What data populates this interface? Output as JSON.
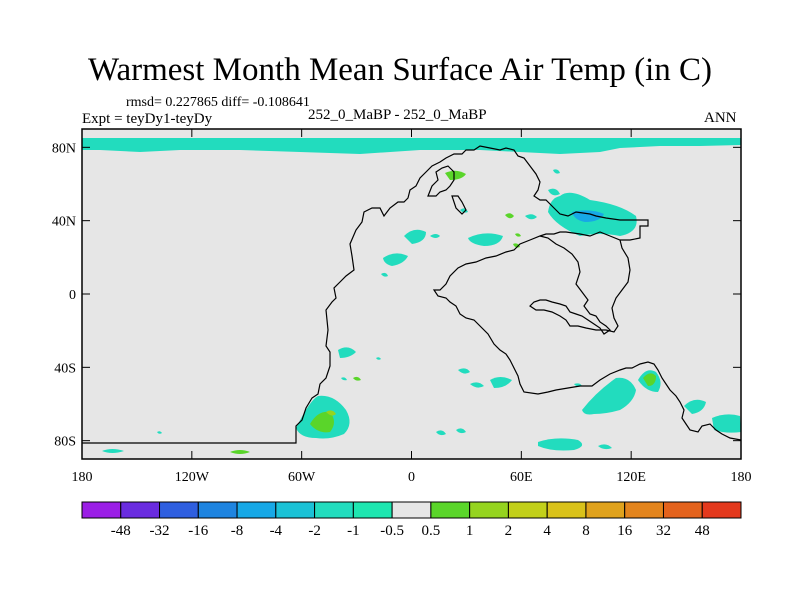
{
  "title": "Warmest Month Mean Surface Air Temp (in C)",
  "stats": "rmsd= 0.227865 diff= -0.108641",
  "experiment": "Expt = teyDy1-teyDy",
  "center_label": "252_0_MaBP - 252_0_MaBP",
  "season": "ANN",
  "map": {
    "background_color": "#e6e6e6",
    "coast_color": "#000000",
    "lat_range": [
      -90,
      90
    ],
    "lon_range": [
      -180,
      180
    ],
    "y_ticks": [
      {
        "lat": 80,
        "label": "80N"
      },
      {
        "lat": 40,
        "label": "40N"
      },
      {
        "lat": 0,
        "label": "0"
      },
      {
        "lat": -40,
        "label": "40S"
      },
      {
        "lat": -80,
        "label": "80S"
      }
    ],
    "x_ticks": [
      {
        "lon": -180,
        "label": "180"
      },
      {
        "lon": -120,
        "label": "120W"
      },
      {
        "lon": -60,
        "label": "60W"
      },
      {
        "lon": 0,
        "label": "0"
      },
      {
        "lon": 60,
        "label": "60E"
      },
      {
        "lon": 120,
        "label": "120E"
      },
      {
        "lon": 180,
        "label": "180"
      }
    ]
  },
  "colorbar": {
    "colors": [
      "#9b1fe6",
      "#6a2ce0",
      "#2f5fe0",
      "#1e84e0",
      "#17a8e6",
      "#1bc2d6",
      "#22dcbe",
      "#1ee6b0",
      "#e6e6e6",
      "#5ad52a",
      "#95d41f",
      "#c2d01a",
      "#d9c21a",
      "#e0a21c",
      "#e3841c",
      "#e3621c",
      "#e3381c"
    ],
    "labels": [
      "-48",
      "-32",
      "-16",
      "-8",
      "-4",
      "-2",
      "-1",
      "-0.5",
      "0.5",
      "1",
      "2",
      "4",
      "8",
      "16",
      "32",
      "48"
    ]
  }
}
